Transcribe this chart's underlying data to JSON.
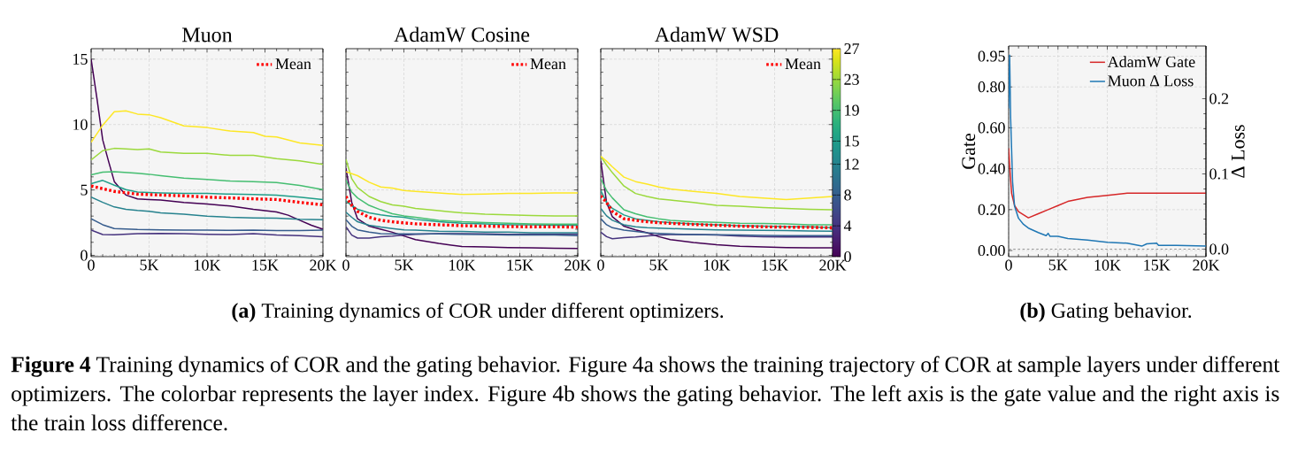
{
  "chart_data": [
    {
      "type": "line",
      "title": "Muon",
      "xlim": [
        0,
        20000
      ],
      "ylim": [
        -0.1,
        15.8
      ],
      "xticks": [
        0,
        {
          "value": 5000,
          "label": "5K"
        },
        {
          "value": 10000,
          "label": "10K"
        },
        {
          "value": 15000,
          "label": "15K"
        },
        {
          "value": 20000,
          "label": "20K"
        }
      ],
      "yticks": [
        0,
        5,
        10,
        15
      ],
      "grid": true,
      "legend": "top right",
      "annotations": [
        "**(a)** Training dynamics of COR under different optimizers.",
        "**Figure 4** Training dynamics of COR and the gating behavior. Figure 4a shows the training trajectory of COR at sample layers under different optimizers. The colorbar represents the layer index. Figure 4b shows the gating behavior. The left axis is the gate value and the right axis is the train loss difference."
      ],
      "series": [
        {
          "color": "#440154",
          "x": [
            0,
            500,
            1000,
            1500,
            2000,
            3000,
            4000,
            5000,
            6000,
            8000,
            10000,
            12000,
            14000,
            16000,
            17000,
            18000,
            19000,
            20000
          ],
          "values": [
            15.0,
            12.0,
            8.82,
            7.2,
            5.64,
            4.61,
            4.32,
            4.27,
            4.23,
            4.05,
            3.93,
            3.77,
            3.52,
            3.32,
            3.07,
            2.68,
            2.3,
            2.0
          ]
        },
        {
          "color": "#46337e",
          "x": [
            0,
            1000,
            2000,
            4000,
            6000,
            8000,
            10000,
            12000,
            14000,
            16000,
            18000,
            20000
          ],
          "values": [
            1.93,
            1.59,
            1.57,
            1.66,
            1.68,
            1.66,
            1.61,
            1.59,
            1.66,
            1.55,
            1.5,
            1.43
          ]
        },
        {
          "color": "#365c8d",
          "x": [
            0,
            1000,
            2000,
            4000,
            6000,
            8000,
            10000,
            12000,
            14000,
            16000,
            18000,
            20000
          ],
          "values": [
            2.8,
            2.34,
            2.05,
            1.98,
            1.95,
            1.93,
            1.93,
            1.91,
            1.93,
            1.89,
            1.89,
            1.93
          ]
        },
        {
          "color": "#26828e",
          "x": [
            0,
            1000,
            2000,
            3000,
            4000,
            5000,
            6000,
            8000,
            10000,
            12000,
            14000,
            16000,
            18000,
            20000
          ],
          "values": [
            4.45,
            4.05,
            3.7,
            3.52,
            3.43,
            3.36,
            3.25,
            3.14,
            3.0,
            2.91,
            2.86,
            2.84,
            2.75,
            2.73
          ]
        },
        {
          "color": "#1f9e89",
          "x": [
            0,
            1000,
            2000,
            3000,
            4000,
            6000,
            8000,
            10000,
            12000,
            14000,
            16000,
            18000,
            20000
          ],
          "values": [
            5.48,
            5.73,
            5.36,
            5.02,
            4.84,
            4.77,
            4.73,
            4.73,
            4.68,
            4.66,
            4.61,
            4.45,
            4.27
          ]
        },
        {
          "color": "#45be71",
          "x": [
            0,
            1000,
            2000,
            4000,
            5000,
            6000,
            8000,
            10000,
            12000,
            14000,
            16000,
            18000,
            20000
          ],
          "values": [
            6.16,
            6.36,
            6.39,
            6.27,
            6.2,
            6.09,
            5.9,
            5.8,
            5.68,
            5.64,
            5.57,
            5.34,
            5.02
          ]
        },
        {
          "color": "#9bd93c",
          "x": [
            0,
            1000,
            2000,
            4000,
            5000,
            6000,
            8000,
            10000,
            12000,
            14000,
            16000,
            18000,
            20000
          ],
          "values": [
            7.3,
            8.0,
            8.18,
            8.09,
            8.14,
            7.9,
            7.8,
            7.8,
            7.64,
            7.64,
            7.39,
            7.23,
            6.95
          ]
        },
        {
          "color": "#fde725",
          "x": [
            0,
            1000,
            2000,
            3000,
            4000,
            5000,
            6000,
            8000,
            10000,
            12000,
            14000,
            15000,
            16000,
            18000,
            20000
          ],
          "values": [
            8.64,
            9.95,
            10.98,
            11.05,
            10.8,
            10.75,
            10.52,
            9.9,
            9.77,
            9.5,
            9.39,
            9.1,
            9.05,
            8.6,
            8.41
          ]
        },
        {
          "name": "Mean",
          "color": "#ff0000",
          "line_style": "dotted",
          "x": [
            0,
            2000,
            4000,
            6000,
            8000,
            10000,
            12000,
            14000,
            16000,
            18000,
            20000
          ],
          "values": [
            5.3,
            4.89,
            4.68,
            4.61,
            4.55,
            4.45,
            4.39,
            4.32,
            4.27,
            4.05,
            3.86
          ]
        }
      ]
    },
    {
      "type": "line",
      "title": "AdamW Cosine",
      "xlim": [
        0,
        20000
      ],
      "ylim": [
        -0.1,
        15.8
      ],
      "xticks": [
        0,
        {
          "value": 5000,
          "label": "5K"
        },
        {
          "value": 10000,
          "label": "10K"
        },
        {
          "value": 15000,
          "label": "15K"
        },
        {
          "value": 20000,
          "label": "20K"
        }
      ],
      "yticks": [
        0,
        5,
        10,
        15
      ],
      "tick_labels": "x",
      "grid": true,
      "legend": "top right",
      "series": [
        {
          "color": "#440154",
          "x": [
            0,
            500,
            1000,
            2000,
            3000,
            4000,
            5000,
            6000,
            8000,
            10000,
            12000,
            14000,
            16000,
            18000,
            20000
          ],
          "values": [
            6.66,
            4.05,
            2.8,
            2.23,
            2.0,
            1.77,
            1.48,
            1.2,
            0.91,
            0.68,
            0.64,
            0.59,
            0.57,
            0.55,
            0.52
          ]
        },
        {
          "color": "#46337e",
          "x": [
            0,
            500,
            1000,
            2000,
            3000,
            4000,
            5000,
            6000,
            8000,
            10000,
            12000,
            14000,
            16000,
            18000,
            20000
          ],
          "values": [
            2.18,
            1.55,
            1.32,
            1.32,
            1.43,
            1.48,
            1.55,
            1.61,
            1.66,
            1.66,
            1.64,
            1.61,
            1.61,
            1.61,
            1.61
          ]
        },
        {
          "color": "#365c8d",
          "x": [
            0,
            500,
            1000,
            2000,
            3000,
            4000,
            5000,
            6000,
            8000,
            10000,
            12000,
            14000,
            16000,
            18000,
            20000
          ],
          "values": [
            2.73,
            2.23,
            1.95,
            1.77,
            1.66,
            1.64,
            1.64,
            1.64,
            1.64,
            1.61,
            1.59,
            1.55,
            1.55,
            1.55,
            1.5
          ]
        },
        {
          "color": "#26828e",
          "x": [
            0,
            500,
            1000,
            2000,
            3000,
            4000,
            5000,
            6000,
            8000,
            10000,
            12000,
            14000,
            16000,
            18000,
            20000
          ],
          "values": [
            3.3,
            2.91,
            2.57,
            2.3,
            2.16,
            2.05,
            1.95,
            1.93,
            1.84,
            1.82,
            1.77,
            1.77,
            1.73,
            1.73,
            1.73
          ]
        },
        {
          "color": "#1f9e89",
          "x": [
            0,
            500,
            1000,
            2000,
            3000,
            4000,
            5000,
            6000,
            8000,
            10000,
            12000,
            14000,
            16000,
            18000,
            20000
          ],
          "values": [
            4.16,
            3.82,
            3.52,
            3.25,
            3.09,
            2.98,
            2.91,
            2.75,
            2.57,
            2.45,
            2.41,
            2.34,
            2.34,
            2.3,
            2.3
          ]
        },
        {
          "color": "#45be71",
          "x": [
            0,
            500,
            1000,
            2000,
            3000,
            4000,
            5000,
            6000,
            8000,
            10000,
            12000,
            14000,
            16000,
            18000,
            20000
          ],
          "values": [
            5.75,
            4.84,
            4.39,
            3.82,
            3.48,
            3.18,
            3.02,
            2.91,
            2.68,
            2.57,
            2.5,
            2.45,
            2.41,
            2.39,
            2.39
          ]
        },
        {
          "color": "#9bd93c",
          "x": [
            0,
            500,
            1000,
            2000,
            3000,
            4000,
            5000,
            6000,
            8000,
            10000,
            12000,
            14000,
            16000,
            18000,
            20000
          ],
          "values": [
            7.34,
            5.86,
            5.18,
            4.5,
            4.11,
            3.86,
            3.75,
            3.59,
            3.41,
            3.25,
            3.14,
            3.09,
            3.05,
            3.02,
            3.02
          ]
        },
        {
          "color": "#fde725",
          "x": [
            0,
            1000,
            2000,
            3000,
            4000,
            5000,
            6000,
            8000,
            10000,
            12000,
            14000,
            16000,
            18000,
            20000
          ],
          "values": [
            6.39,
            6.09,
            5.59,
            5.23,
            5.14,
            4.95,
            4.89,
            4.77,
            4.66,
            4.68,
            4.73,
            4.73,
            4.77,
            4.77
          ]
        },
        {
          "name": "Mean",
          "color": "#ff0000",
          "line_style": "dotted",
          "x": [
            0,
            500,
            1000,
            2000,
            3000,
            4000,
            5000,
            6000,
            8000,
            10000,
            12000,
            14000,
            16000,
            18000,
            20000
          ],
          "values": [
            4.5,
            3.82,
            3.36,
            2.91,
            2.68,
            2.57,
            2.48,
            2.41,
            2.34,
            2.27,
            2.23,
            2.2,
            2.18,
            2.18,
            2.16
          ]
        }
      ]
    },
    {
      "type": "line",
      "title": "AdamW WSD",
      "xlim": [
        0,
        20000
      ],
      "ylim": [
        -0.1,
        15.8
      ],
      "xticks": [
        0,
        {
          "value": 5000,
          "label": "5K"
        },
        {
          "value": 10000,
          "label": "10K"
        },
        {
          "value": 15000,
          "label": "15K"
        },
        {
          "value": 20000,
          "label": "20K"
        }
      ],
      "yticks": [
        0,
        5,
        10,
        15
      ],
      "tick_labels": "x",
      "grid": true,
      "legend": "top right",
      "clim": [
        0,
        27
      ],
      "cticks": [
        0,
        4,
        8,
        12,
        15,
        19,
        23,
        27
      ],
      "series": [
        {
          "color": "#440154",
          "x": [
            0,
            500,
            1000,
            2000,
            3000,
            4000,
            5000,
            6000,
            8000,
            10000,
            12000,
            14000,
            16000,
            18000,
            20000
          ],
          "values": [
            7.23,
            4.05,
            2.95,
            2.23,
            1.95,
            1.73,
            1.43,
            1.2,
            0.98,
            0.82,
            0.7,
            0.64,
            0.59,
            0.57,
            0.57
          ]
        },
        {
          "color": "#46337e",
          "x": [
            0,
            500,
            1000,
            2000,
            3000,
            4000,
            5000,
            6000,
            8000,
            10000,
            12000,
            14000,
            16000,
            18000,
            20000
          ],
          "values": [
            1.77,
            1.43,
            1.27,
            1.36,
            1.41,
            1.48,
            1.55,
            1.59,
            1.59,
            1.55,
            1.48,
            1.43,
            1.41,
            1.41,
            1.41
          ]
        },
        {
          "color": "#365c8d",
          "x": [
            0,
            500,
            1000,
            2000,
            3000,
            4000,
            5000,
            6000,
            8000,
            10000,
            12000,
            14000,
            16000,
            18000,
            20000
          ],
          "values": [
            2.8,
            2.34,
            2.11,
            1.93,
            1.82,
            1.73,
            1.68,
            1.64,
            1.59,
            1.57,
            1.55,
            1.52,
            1.5,
            1.5,
            1.5
          ]
        },
        {
          "color": "#26828e",
          "x": [
            0,
            500,
            1000,
            2000,
            3000,
            4000,
            5000,
            6000,
            8000,
            10000,
            12000,
            14000,
            16000,
            18000,
            20000
          ],
          "values": [
            3.59,
            3.02,
            2.68,
            2.34,
            2.18,
            2.11,
            2.08,
            2.05,
            2.0,
            1.95,
            1.93,
            1.91,
            1.89,
            1.86,
            1.84
          ]
        },
        {
          "color": "#1f9e89",
          "x": [
            0,
            500,
            1000,
            2000,
            3000,
            4000,
            5000,
            6000,
            8000,
            10000,
            12000,
            14000,
            16000,
            18000,
            20000
          ],
          "values": [
            4.95,
            4.05,
            3.59,
            3.09,
            2.8,
            2.68,
            2.57,
            2.5,
            2.41,
            2.34,
            2.27,
            2.23,
            2.2,
            2.18,
            2.11
          ]
        },
        {
          "color": "#45be71",
          "x": [
            0,
            500,
            1000,
            2000,
            3000,
            4000,
            5000,
            6000,
            8000,
            10000,
            12000,
            14000,
            16000,
            18000,
            20000
          ],
          "values": [
            5.86,
            4.95,
            4.39,
            3.48,
            3.18,
            2.95,
            2.8,
            2.68,
            2.57,
            2.52,
            2.45,
            2.43,
            2.41,
            2.34,
            2.34
          ]
        },
        {
          "color": "#9bd93c",
          "x": [
            0,
            500,
            1000,
            2000,
            3000,
            4000,
            5000,
            6000,
            8000,
            10000,
            12000,
            14000,
            16000,
            18000,
            20000
          ],
          "values": [
            7.57,
            6.9,
            6.32,
            5.3,
            4.73,
            4.5,
            4.32,
            4.23,
            4.05,
            3.82,
            3.75,
            3.66,
            3.59,
            3.52,
            3.48
          ]
        },
        {
          "color": "#fde725",
          "x": [
            0,
            500,
            1000,
            2000,
            3000,
            4000,
            5000,
            6000,
            8000,
            10000,
            12000,
            14000,
            16000,
            18000,
            20000
          ],
          "values": [
            7.57,
            7.2,
            6.77,
            5.98,
            5.64,
            5.45,
            5.23,
            5.07,
            4.89,
            4.73,
            4.5,
            4.39,
            4.27,
            4.39,
            4.5
          ]
        },
        {
          "name": "Mean",
          "color": "#ff0000",
          "line_style": "dotted",
          "x": [
            0,
            500,
            1000,
            2000,
            3000,
            4000,
            5000,
            6000,
            8000,
            10000,
            12000,
            14000,
            16000,
            18000,
            20000
          ],
          "values": [
            4.55,
            4.05,
            3.36,
            2.8,
            2.68,
            2.57,
            2.5,
            2.45,
            2.36,
            2.3,
            2.23,
            2.18,
            2.16,
            2.14,
            2.11
          ]
        }
      ]
    },
    {
      "type": "line",
      "ylabel": "Gate",
      "y2label": "Δ Loss",
      "xlim": [
        0,
        20000
      ],
      "ylim": [
        -0.03,
        1.0
      ],
      "y2lim": [
        -0.01,
        0.27
      ],
      "xticks": [
        0,
        {
          "value": 5000,
          "label": "5K"
        },
        {
          "value": 10000,
          "label": "10K"
        },
        {
          "value": 15000,
          "label": "15K"
        },
        {
          "value": 20000,
          "label": "20K"
        }
      ],
      "yticks": [
        {
          "value": 0,
          "label": "0.00"
        },
        {
          "value": 0.2,
          "label": "0.20"
        },
        {
          "value": 0.4,
          "label": "0.40"
        },
        {
          "value": 0.6,
          "label": "0.60"
        },
        {
          "value": 0.8,
          "label": "0.80"
        },
        0.95
      ],
      "y2ticks": [
        {
          "value": 0,
          "label": "0.0"
        },
        0.1,
        0.2
      ],
      "grid": true,
      "legend": "top right",
      "annotations": [
        "**(b)** Gating behavior."
      ],
      "ref_lines": [
        {
          "axis": "y2",
          "value": 0,
          "color": "#808080",
          "line_style": "dotted"
        }
      ],
      "series": [
        {
          "name": "AdamW Gate",
          "color": "#d62728",
          "x": [
            0,
            150,
            300,
            600,
            1000,
            2000,
            3000,
            4000,
            5000,
            6000,
            8000,
            10000,
            12000,
            14000,
            16000,
            18000,
            20000
          ],
          "values": [
            0.5,
            0.38,
            0.28,
            0.22,
            0.19,
            0.16,
            0.18,
            0.2,
            0.22,
            0.24,
            0.26,
            0.27,
            0.28,
            0.28,
            0.28,
            0.28,
            0.28
          ]
        },
        {
          "name": "Muon Δ Loss",
          "color": "#1f77b4",
          "axis": "y2",
          "x": [
            0,
            100,
            200,
            400,
            600,
            1000,
            1500,
            2000,
            3000,
            3800,
            4000,
            4200,
            5000,
            6000,
            8000,
            10000,
            12000,
            13500,
            14000,
            15000,
            15200,
            17000,
            20000
          ],
          "values": [
            0.187,
            0.258,
            0.175,
            0.089,
            0.057,
            0.041,
            0.033,
            0.028,
            0.022,
            0.018,
            0.021,
            0.017,
            0.017,
            0.014,
            0.012,
            0.009,
            0.008,
            0.004,
            0.007,
            0.008,
            0.005,
            0.005,
            0.004
          ]
        }
      ]
    }
  ]
}
